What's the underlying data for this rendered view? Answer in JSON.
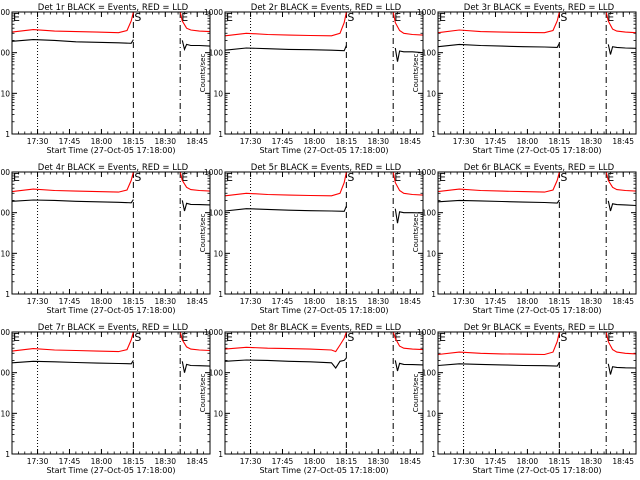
{
  "chart_data": [
    {
      "type": "line",
      "title": "Det 1r BLACK = Events, RED = LLD",
      "xlabel": "Start Time (27-Oct-05 17:18:00)",
      "ylabel": "Counts/sec",
      "xticks": [
        "17:30",
        "17:45",
        "18:00",
        "18:15",
        "18:30",
        "18:45"
      ],
      "yticks": [
        "1000",
        "100",
        "10",
        "1"
      ],
      "ylim": [
        1,
        1000
      ],
      "yscale": "log",
      "xlim_minutes": [
        0,
        93
      ],
      "markers": [
        {
          "label": "S",
          "x_minute": 57
        },
        {
          "label": "E",
          "x_minute": 79
        }
      ],
      "series": [
        {
          "color": "#ff0000",
          "x_minutes": [
            0,
            10,
            20,
            30,
            40,
            50,
            54,
            56,
            57,
            79,
            80,
            82,
            84,
            88,
            93
          ],
          "values": [
            320,
            370,
            340,
            330,
            320,
            310,
            350,
            600,
            1000,
            1000,
            600,
            400,
            360,
            340,
            330
          ]
        },
        {
          "color": "#000000",
          "x_minutes": [
            0,
            10,
            20,
            30,
            40,
            50,
            56,
            57,
            79,
            80,
            81,
            82,
            84,
            88,
            93
          ],
          "values": [
            190,
            210,
            200,
            185,
            180,
            175,
            170,
            210,
            null,
            200,
            120,
            160,
            150,
            150,
            145
          ]
        }
      ]
    },
    {
      "type": "line",
      "title": "Det 2r BLACK = Events, RED = LLD",
      "xlabel": "Start Time (27-Oct-05 17:18:00)",
      "ylabel": "Counts/sec",
      "xticks": [
        "17:30",
        "17:45",
        "18:00",
        "18:15",
        "18:30",
        "18:45"
      ],
      "yticks": [
        "1000",
        "100",
        "10",
        "1"
      ],
      "ylim": [
        1,
        1000
      ],
      "yscale": "log",
      "xlim_minutes": [
        0,
        93
      ],
      "markers": [
        {
          "label": "S",
          "x_minute": 57
        },
        {
          "label": "E",
          "x_minute": 79
        }
      ],
      "series": [
        {
          "color": "#ff0000",
          "x_minutes": [
            0,
            10,
            20,
            30,
            40,
            50,
            54,
            56,
            57,
            79,
            80,
            82,
            84,
            88,
            93
          ],
          "values": [
            260,
            300,
            280,
            270,
            265,
            260,
            300,
            550,
            1000,
            1000,
            550,
            350,
            300,
            280,
            270
          ]
        },
        {
          "color": "#000000",
          "x_minutes": [
            0,
            10,
            20,
            30,
            40,
            50,
            56,
            57,
            79,
            80,
            81,
            82,
            84,
            88,
            93
          ],
          "values": [
            115,
            130,
            125,
            120,
            118,
            115,
            112,
            150,
            null,
            130,
            60,
            110,
            105,
            105,
            100
          ]
        }
      ]
    },
    {
      "type": "line",
      "title": "Det 3r BLACK = Events, RED = LLD",
      "xlabel": "Start Time (27-Oct-05 17:18:00)",
      "ylabel": "Counts/sec",
      "xticks": [
        "17:30",
        "17:45",
        "18:00",
        "18:15",
        "18:30",
        "18:45"
      ],
      "yticks": [
        "1000",
        "100",
        "10",
        "1"
      ],
      "ylim": [
        1,
        1000
      ],
      "yscale": "log",
      "xlim_minutes": [
        0,
        93
      ],
      "markers": [
        {
          "label": "S",
          "x_minute": 57
        },
        {
          "label": "E",
          "x_minute": 79
        }
      ],
      "series": [
        {
          "color": "#ff0000",
          "x_minutes": [
            0,
            10,
            20,
            30,
            40,
            50,
            54,
            56,
            57,
            79,
            80,
            82,
            84,
            88,
            93
          ],
          "values": [
            310,
            360,
            330,
            320,
            315,
            310,
            350,
            600,
            1000,
            1000,
            600,
            380,
            340,
            320,
            310
          ]
        },
        {
          "color": "#000000",
          "x_minutes": [
            0,
            10,
            20,
            30,
            40,
            50,
            56,
            57,
            79,
            80,
            81,
            82,
            84,
            88,
            93
          ],
          "values": [
            140,
            160,
            150,
            145,
            140,
            138,
            135,
            170,
            null,
            160,
            90,
            140,
            135,
            130,
            128
          ]
        }
      ]
    },
    {
      "type": "line",
      "title": "Det 4r BLACK = Events, RED = LLD",
      "xlabel": "Start Time (27-Oct-05 17:18:00)",
      "ylabel": "Counts/sec",
      "xticks": [
        "17:30",
        "17:45",
        "18:00",
        "18:15",
        "18:30",
        "18:45"
      ],
      "yticks": [
        "1000",
        "100",
        "10",
        "1"
      ],
      "ylim": [
        1,
        1000
      ],
      "yscale": "log",
      "xlim_minutes": [
        0,
        93
      ],
      "markers": [
        {
          "label": "S",
          "x_minute": 57
        },
        {
          "label": "E",
          "x_minute": 79
        }
      ],
      "series": [
        {
          "color": "#ff0000",
          "x_minutes": [
            0,
            10,
            20,
            30,
            40,
            50,
            54,
            56,
            57,
            79,
            80,
            82,
            84,
            88,
            93
          ],
          "values": [
            330,
            380,
            350,
            340,
            330,
            320,
            360,
            620,
            1000,
            1000,
            620,
            420,
            370,
            350,
            340
          ]
        },
        {
          "color": "#000000",
          "x_minutes": [
            0,
            10,
            20,
            30,
            40,
            50,
            56,
            57,
            79,
            80,
            81,
            82,
            84,
            88,
            93
          ],
          "values": [
            190,
            205,
            200,
            190,
            185,
            180,
            175,
            210,
            null,
            200,
            110,
            170,
            160,
            158,
            155
          ]
        }
      ]
    },
    {
      "type": "line",
      "title": "Det 5r BLACK = Events, RED = LLD",
      "xlabel": "Start Time (27-Oct-05 17:18:00)",
      "ylabel": "Counts/sec",
      "xticks": [
        "17:30",
        "17:45",
        "18:00",
        "18:15",
        "18:30",
        "18:45"
      ],
      "yticks": [
        "1000",
        "100",
        "10",
        "1"
      ],
      "ylim": [
        1,
        1000
      ],
      "yscale": "log",
      "xlim_minutes": [
        0,
        93
      ],
      "markers": [
        {
          "label": "S",
          "x_minute": 57
        },
        {
          "label": "E",
          "x_minute": 79
        }
      ],
      "series": [
        {
          "color": "#ff0000",
          "x_minutes": [
            0,
            10,
            20,
            30,
            40,
            50,
            54,
            56,
            57,
            79,
            80,
            82,
            84,
            88,
            93
          ],
          "values": [
            260,
            300,
            280,
            270,
            265,
            260,
            300,
            550,
            1000,
            1000,
            550,
            350,
            300,
            280,
            270
          ]
        },
        {
          "color": "#000000",
          "x_minutes": [
            0,
            10,
            20,
            30,
            40,
            50,
            56,
            57,
            79,
            80,
            81,
            82,
            84,
            88,
            93
          ],
          "values": [
            110,
            125,
            120,
            115,
            112,
            110,
            108,
            145,
            null,
            125,
            55,
            105,
            100,
            100,
            98
          ]
        }
      ]
    },
    {
      "type": "line",
      "title": "Det 6r BLACK = Events, RED = LLD",
      "xlabel": "Start Time (27-Oct-05 17:18:00)",
      "ylabel": "Counts/sec",
      "xticks": [
        "17:30",
        "17:45",
        "18:00",
        "18:15",
        "18:30",
        "18:45"
      ],
      "yticks": [
        "1000",
        "100",
        "10",
        "1"
      ],
      "ylim": [
        1,
        1000
      ],
      "yscale": "log",
      "xlim_minutes": [
        0,
        93
      ],
      "markers": [
        {
          "label": "S",
          "x_minute": 57
        },
        {
          "label": "E",
          "x_minute": 79
        }
      ],
      "series": [
        {
          "color": "#ff0000",
          "x_minutes": [
            0,
            10,
            20,
            30,
            40,
            50,
            54,
            56,
            57,
            79,
            80,
            82,
            84,
            88,
            93
          ],
          "values": [
            330,
            380,
            350,
            340,
            330,
            320,
            360,
            620,
            1000,
            1000,
            620,
            420,
            370,
            350,
            340
          ]
        },
        {
          "color": "#000000",
          "x_minutes": [
            0,
            10,
            20,
            30,
            40,
            50,
            56,
            57,
            79,
            80,
            81,
            82,
            84,
            88,
            93
          ],
          "values": [
            185,
            200,
            195,
            188,
            182,
            178,
            172,
            205,
            null,
            195,
            110,
            165,
            158,
            155,
            150
          ]
        }
      ]
    },
    {
      "type": "line",
      "title": "Det 7r BLACK = Events, RED = LLD",
      "xlabel": "Start Time (27-Oct-05 17:18:00)",
      "ylabel": "Counts/sec",
      "xticks": [
        "17:30",
        "17:45",
        "18:00",
        "18:15",
        "18:30",
        "18:45"
      ],
      "yticks": [
        "1000",
        "100",
        "10",
        "1"
      ],
      "ylim": [
        1,
        1000
      ],
      "yscale": "log",
      "xlim_minutes": [
        0,
        93
      ],
      "markers": [
        {
          "label": "S",
          "x_minute": 57
        },
        {
          "label": "E",
          "x_minute": 79
        }
      ],
      "series": [
        {
          "color": "#ff0000",
          "x_minutes": [
            0,
            10,
            20,
            30,
            40,
            50,
            54,
            56,
            57,
            79,
            80,
            82,
            84,
            88,
            93
          ],
          "values": [
            340,
            390,
            360,
            350,
            340,
            330,
            370,
            640,
            1000,
            1000,
            640,
            430,
            380,
            360,
            350
          ]
        },
        {
          "color": "#000000",
          "x_minutes": [
            0,
            10,
            20,
            30,
            40,
            50,
            56,
            57,
            79,
            80,
            81,
            82,
            84,
            88,
            93
          ],
          "values": [
            175,
            190,
            185,
            178,
            172,
            168,
            165,
            200,
            null,
            190,
            100,
            160,
            150,
            148,
            145
          ]
        }
      ]
    },
    {
      "type": "line",
      "title": "Det 8r BLACK = Events, RED = LLD",
      "xlabel": "Start Time (27-Oct-05 17:18:00)",
      "ylabel": "Counts/sec",
      "xticks": [
        "17:30",
        "17:45",
        "18:00",
        "18:15",
        "18:30",
        "18:45"
      ],
      "yticks": [
        "1000",
        "100",
        "10",
        "1"
      ],
      "ylim": [
        1,
        1000
      ],
      "yscale": "log",
      "xlim_minutes": [
        0,
        93
      ],
      "markers": [
        {
          "label": "S",
          "x_minute": 57
        },
        {
          "label": "E",
          "x_minute": 79
        }
      ],
      "series": [
        {
          "color": "#ff0000",
          "x_minutes": [
            0,
            10,
            20,
            30,
            40,
            50,
            52,
            54,
            56,
            57,
            79,
            80,
            82,
            84,
            88,
            93
          ],
          "values": [
            380,
            420,
            400,
            390,
            380,
            360,
            330,
            480,
            700,
            1000,
            1000,
            700,
            450,
            400,
            380,
            370
          ]
        },
        {
          "color": "#000000",
          "x_minutes": [
            0,
            10,
            20,
            30,
            40,
            50,
            52,
            54,
            56,
            57,
            79,
            80,
            81,
            82,
            84,
            88,
            93
          ],
          "values": [
            190,
            205,
            200,
            190,
            185,
            175,
            130,
            190,
            200,
            230,
            null,
            200,
            110,
            170,
            160,
            158,
            155
          ]
        }
      ]
    },
    {
      "type": "line",
      "title": "Det 9r BLACK = Events, RED = LLD",
      "xlabel": "Start Time (27-Oct-05 17:18:00)",
      "ylabel": "Counts/sec",
      "xticks": [
        "17:30",
        "17:45",
        "18:00",
        "18:15",
        "18:30",
        "18:45"
      ],
      "yticks": [
        "1000",
        "100",
        "10",
        "1"
      ],
      "ylim": [
        1,
        1000
      ],
      "yscale": "log",
      "xlim_minutes": [
        0,
        93
      ],
      "markers": [
        {
          "label": "S",
          "x_minute": 57
        },
        {
          "label": "E",
          "x_minute": 79
        }
      ],
      "series": [
        {
          "color": "#ff0000",
          "x_minutes": [
            0,
            10,
            20,
            30,
            40,
            50,
            54,
            56,
            57,
            79,
            80,
            82,
            84,
            88,
            93
          ],
          "values": [
            280,
            320,
            300,
            290,
            285,
            280,
            320,
            580,
            1000,
            1000,
            580,
            370,
            320,
            300,
            290
          ]
        },
        {
          "color": "#000000",
          "x_minutes": [
            0,
            10,
            20,
            30,
            40,
            50,
            56,
            57,
            79,
            80,
            81,
            82,
            84,
            88,
            93
          ],
          "values": [
            150,
            165,
            160,
            155,
            150,
            148,
            145,
            180,
            null,
            165,
            90,
            140,
            135,
            132,
            130
          ]
        }
      ]
    }
  ]
}
